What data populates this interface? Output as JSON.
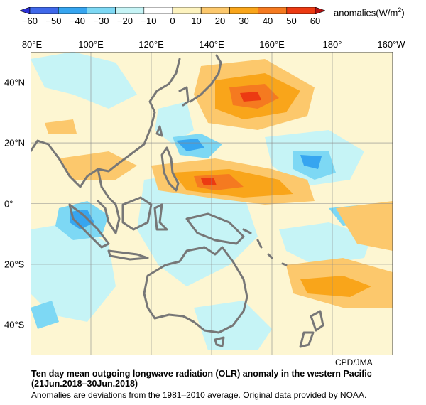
{
  "colors": {
    "scale": [
      "#2a2fd6",
      "#3f68ea",
      "#36a5f0",
      "#7dd8f4",
      "#c6f4f6",
      "#ffffff",
      "#fdf3bf",
      "#fcc86c",
      "#f9a51a",
      "#f57a20",
      "#ec3a12",
      "#b71010"
    ],
    "coast": "#777777",
    "grid": "#8a8a8a"
  },
  "colorbar": {
    "ticks": [
      "−60",
      "−50",
      "−40",
      "−30",
      "−20",
      "−10",
      "0",
      "10",
      "20",
      "30",
      "40",
      "50",
      "60"
    ],
    "unit_prefix": "anomalies(W/m",
    "unit_exp": "2",
    "unit_suffix": ")"
  },
  "axes": {
    "lon_labels": [
      "80°E",
      "100°E",
      "120°E",
      "140°E",
      "160°E",
      "180°",
      "160°W"
    ],
    "lat_labels": [
      "40°N",
      "20°N",
      "0°",
      "20°S",
      "40°S"
    ]
  },
  "map_extent": {
    "lon": [
      80,
      200
    ],
    "lat": [
      -50,
      50
    ]
  },
  "credit": "CPD/JMA",
  "title_line1": "Ten day mean outgoing longwave radiation (OLR) anomaly in the western Pacific",
  "title_line2": "(21Jun.2018–30Jun.2018)",
  "note": "Anomalies are deviations from the 1981–2010 average. Original data provided by NOAA."
}
